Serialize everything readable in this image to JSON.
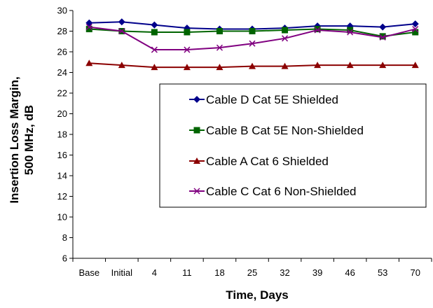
{
  "chart_data": {
    "type": "line",
    "title": "",
    "xlabel": "Time, Days",
    "ylabel": [
      "Insertion Loss Margin,",
      "500 MHz, dB"
    ],
    "categories": [
      "Base",
      "Initial",
      "4",
      "11",
      "18",
      "25",
      "32",
      "39",
      "46",
      "53",
      "70"
    ],
    "ylim": [
      6,
      30
    ],
    "yticks": [
      6,
      8,
      10,
      12,
      14,
      16,
      18,
      20,
      22,
      24,
      26,
      28,
      30
    ],
    "grid": "none",
    "legend_position": "center-right",
    "series": [
      {
        "name": "Cable D Cat 5E Shielded",
        "color": "#00008B",
        "marker": "diamond",
        "values": [
          28.8,
          28.9,
          28.6,
          28.3,
          28.2,
          28.2,
          28.3,
          28.5,
          28.5,
          28.4,
          28.7
        ]
      },
      {
        "name": "Cable B Cat 5E Non-Shielded",
        "color": "#006400",
        "marker": "square",
        "values": [
          28.2,
          28.0,
          27.9,
          27.9,
          28.0,
          28.0,
          28.1,
          28.2,
          28.1,
          27.5,
          27.9
        ]
      },
      {
        "name": "Cable A Cat 6 Shielded",
        "color": "#8B0000",
        "marker": "triangle",
        "values": [
          24.9,
          24.7,
          24.5,
          24.5,
          24.5,
          24.6,
          24.6,
          24.7,
          24.7,
          24.7,
          24.7
        ]
      },
      {
        "name": "Cable C Cat 6 Non-Shielded",
        "color": "#800080",
        "marker": "x",
        "values": [
          28.4,
          28.0,
          26.2,
          26.2,
          26.4,
          26.8,
          27.3,
          28.1,
          27.9,
          27.4,
          28.2
        ]
      }
    ]
  }
}
